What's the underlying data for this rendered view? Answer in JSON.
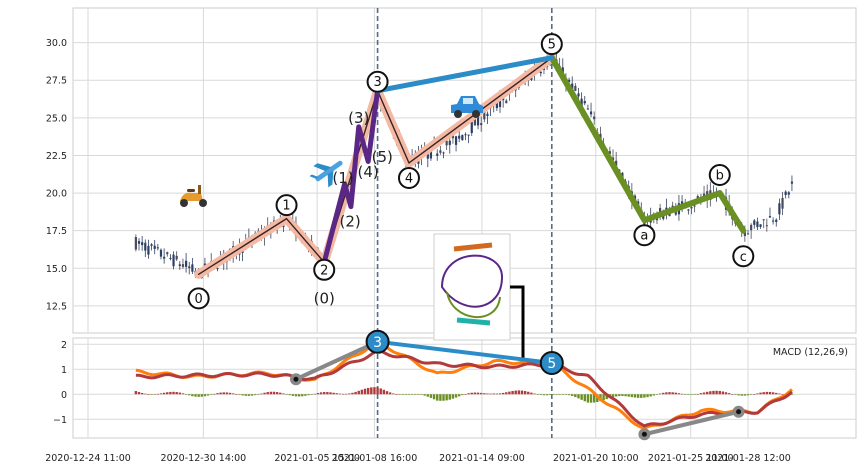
{
  "chart_data": [
    {
      "type": "candlestick",
      "panel": "price",
      "title": "",
      "xlabel": "",
      "ylabel": "",
      "ylim": [
        10.7,
        32.3
      ],
      "y_ticks": [
        "12.5",
        "15.0",
        "17.5",
        "20.0",
        "22.5",
        "25.0",
        "27.5",
        "30.0"
      ],
      "y_tick_values": [
        12.5,
        15.0,
        17.5,
        20.0,
        22.5,
        25.0,
        27.5,
        30.0
      ],
      "grid": true,
      "price_anchors": [
        {
          "t": "2020-12-27 00:00",
          "v": 16.7
        },
        {
          "t": "2020-12-29 14:00",
          "v": 15.2
        },
        {
          "t": "2020-12-30 08:00",
          "v": 14.6
        },
        {
          "t": "2021-01-04 00:00",
          "v": 18.3
        },
        {
          "t": "2021-01-06 00:00",
          "v": 15.4
        },
        {
          "t": "2021-01-08 20:00",
          "v": 26.8
        },
        {
          "t": "2021-01-10 12:00",
          "v": 22.0
        },
        {
          "t": "2021-01-13 00:00",
          "v": 23.5
        },
        {
          "t": "2021-01-18 02:00",
          "v": 29.0
        },
        {
          "t": "2021-01-20 00:00",
          "v": 25.5
        },
        {
          "t": "2021-01-23 00:00",
          "v": 18.2
        },
        {
          "t": "2021-01-27 00:00",
          "v": 20.0
        },
        {
          "t": "2021-01-28 06:00",
          "v": 17.5
        },
        {
          "t": "2021-01-30 00:00",
          "v": 18.5
        },
        {
          "t": "2021-01-30 20:00",
          "v": 20.5
        }
      ],
      "wave_labels": [
        {
          "text": "0",
          "t": "2020-12-30 08:00",
          "v": 13.0,
          "circled": true
        },
        {
          "text": "1",
          "t": "2021-01-04 00:00",
          "v": 19.2,
          "circled": true
        },
        {
          "text": "2",
          "t": "2021-01-06 00:00",
          "v": 14.9,
          "circled": true
        },
        {
          "text": "3",
          "t": "2021-01-08 20:00",
          "v": 27.4,
          "circled": true
        },
        {
          "text": "4",
          "t": "2021-01-10 12:00",
          "v": 21.0,
          "circled": true
        },
        {
          "text": "5",
          "t": "2021-01-18 02:00",
          "v": 29.9,
          "circled": true
        },
        {
          "text": "a",
          "t": "2021-01-23 00:00",
          "v": 17.2,
          "circled": true
        },
        {
          "text": "b",
          "t": "2021-01-27 00:00",
          "v": 21.2,
          "circled": true
        },
        {
          "text": "c",
          "t": "2021-01-28 06:00",
          "v": 15.8,
          "circled": true
        },
        {
          "text": "(0)",
          "t": "2021-01-06 00:00",
          "v": 13.0,
          "circled": false
        },
        {
          "text": "(1)",
          "t": "2021-01-07 00:00",
          "v": 21.0,
          "circled": false
        },
        {
          "text": "(2)",
          "t": "2021-01-07 09:00",
          "v": 18.1,
          "circled": false
        },
        {
          "text": "(3)",
          "t": "2021-01-07 20:00",
          "v": 25.0,
          "circled": false
        },
        {
          "text": "(4)",
          "t": "2021-01-08 08:00",
          "v": 21.4,
          "circled": false
        },
        {
          "text": "(5)",
          "t": "2021-01-09 02:00",
          "v": 22.4,
          "circled": false
        }
      ],
      "lines": [
        {
          "name": "impulse-wave",
          "color": "#f4b9a2",
          "width": 9,
          "points": [
            [
              "2020-12-30 08:00",
              14.6
            ],
            [
              "2021-01-04 00:00",
              18.3
            ],
            [
              "2021-01-06 00:00",
              15.4
            ],
            [
              "2021-01-08 20:00",
              26.8
            ],
            [
              "2021-01-10 12:00",
              22.0
            ],
            [
              "2021-01-18 02:00",
              29.0
            ]
          ]
        },
        {
          "name": "impulse-wave-core",
          "color": "#3a2226",
          "width": 1.4,
          "points": [
            [
              "2020-12-30 08:00",
              14.6
            ],
            [
              "2021-01-04 00:00",
              18.3
            ],
            [
              "2021-01-06 00:00",
              15.4
            ],
            [
              "2021-01-08 20:00",
              26.8
            ],
            [
              "2021-01-10 12:00",
              22.0
            ],
            [
              "2021-01-18 02:00",
              29.0
            ]
          ]
        },
        {
          "name": "subwave",
          "color": "#5b2787",
          "width": 5,
          "points": [
            [
              "2021-01-06 00:00",
              15.4
            ],
            [
              "2021-01-07 02:00",
              20.6
            ],
            [
              "2021-01-07 10:00",
              19.1
            ],
            [
              "2021-01-07 20:00",
              24.4
            ],
            [
              "2021-01-08 08:00",
              22.1
            ],
            [
              "2021-01-08 20:00",
              26.8
            ]
          ]
        },
        {
          "name": "correction-wave",
          "color": "#6a8f23",
          "width": 6,
          "points": [
            [
              "2021-01-18 02:00",
              29.0
            ],
            [
              "2021-01-23 00:00",
              18.2
            ],
            [
              "2021-01-27 00:00",
              20.0
            ],
            [
              "2021-01-28 06:00",
              17.5
            ]
          ]
        },
        {
          "name": "divergence-link",
          "color": "#2b8cc7",
          "width": 5,
          "points": [
            [
              "2021-01-08 20:00",
              26.8
            ],
            [
              "2021-01-18 02:00",
              29.0
            ]
          ]
        }
      ],
      "vertical_markers": [
        "2021-01-08 20:00",
        "2021-01-18 02:00"
      ],
      "icons": [
        "scooter-icon",
        "airplane-icon",
        "car-icon",
        "roller-coaster-icon"
      ]
    },
    {
      "type": "line",
      "panel": "macd",
      "title": "",
      "legend": "MACD (12,26,9)",
      "ylim": [
        -1.75,
        2.25
      ],
      "y_ticks": [
        "−1",
        "0",
        "1",
        "2"
      ],
      "y_tick_values": [
        -1,
        0,
        1,
        2
      ],
      "grid": true,
      "series": [
        {
          "name": "",
          "color": "#ff7f0e",
          "anchors": [
            [
              "2020-12-27 00:00",
              0.9
            ],
            [
              "2020-12-30 00:00",
              0.7
            ],
            [
              "2021-01-03 00:00",
              0.85
            ],
            [
              "2021-01-05 12:00",
              0.55
            ],
            [
              "2021-01-08 20:00",
              2.1
            ],
            [
              "2021-01-12 00:00",
              0.8
            ],
            [
              "2021-01-15 00:00",
              1.3
            ],
            [
              "2021-01-18 02:00",
              1.25
            ],
            [
              "2021-01-20 00:00",
              0.2
            ],
            [
              "2021-01-23 00:00",
              -1.4
            ],
            [
              "2021-01-26 00:00",
              -0.65
            ],
            [
              "2021-01-29 00:00",
              -0.7
            ],
            [
              "2021-01-30 20:00",
              0.2
            ]
          ]
        },
        {
          "name": "",
          "color": "#b23a3a",
          "anchors": [
            [
              "2020-12-27 00:00",
              0.7
            ],
            [
              "2020-12-30 00:00",
              0.75
            ],
            [
              "2021-01-03 00:00",
              0.8
            ],
            [
              "2021-01-05 12:00",
              0.6
            ],
            [
              "2021-01-08 20:00",
              1.7
            ],
            [
              "2021-01-12 00:00",
              1.2
            ],
            [
              "2021-01-15 00:00",
              1.1
            ],
            [
              "2021-01-18 02:00",
              1.2
            ],
            [
              "2021-01-20 00:00",
              0.7
            ],
            [
              "2021-01-23 00:00",
              -1.3
            ],
            [
              "2021-01-26 00:00",
              -0.8
            ],
            [
              "2021-01-29 00:00",
              -0.7
            ],
            [
              "2021-01-30 20:00",
              0.1
            ]
          ]
        }
      ],
      "divergence_links": [
        {
          "color": "#888888",
          "points": [
            [
              "2021-01-04 12:00",
              0.6
            ],
            [
              "2021-01-08 20:00",
              2.1
            ]
          ]
        },
        {
          "color": "#2b8cc7",
          "points": [
            [
              "2021-01-08 20:00",
              2.1
            ],
            [
              "2021-01-18 02:00",
              1.25
            ]
          ]
        },
        {
          "color": "#888888",
          "points": [
            [
              "2021-01-23 00:00",
              -1.6
            ],
            [
              "2021-01-28 00:00",
              -0.7
            ]
          ]
        }
      ],
      "macd_markers": [
        {
          "text": "3",
          "t": "2021-01-08 20:00",
          "v": 2.1
        },
        {
          "text": "5",
          "t": "2021-01-18 02:00",
          "v": 1.25
        }
      ],
      "histogram_colors": {
        "positive": "#b23a3a",
        "negative": "#6a8f23"
      }
    }
  ],
  "x_ticks": [
    {
      "label": "2020-12-24 11:00",
      "t": "2020-12-24 11:00"
    },
    {
      "label": "2020-12-30 14:00",
      "t": "2020-12-30 14:00"
    },
    {
      "label": "2021-01-05 15:00",
      "t": "2021-01-05 15:00"
    },
    {
      "label": "2021-01-08 16:00",
      "t": "2021-01-08 16:00"
    },
    {
      "label": "2021-01-14 09:00",
      "t": "2021-01-14 09:00"
    },
    {
      "label": "2021-01-20 10:00",
      "t": "2021-01-20 10:00"
    },
    {
      "label": "2021-01-25 11:00",
      "t": "2021-01-25 11:00"
    },
    {
      "label": "2021-01-28 12:00",
      "t": "2021-01-28 12:00"
    }
  ],
  "x_domain": [
    "2020-12-24 11:00",
    "2021-02-01 00:00"
  ],
  "colors": {
    "grid": "#d9d9d9",
    "axes_edge": "#cccccc",
    "candle_up": "#4a4a5a",
    "candle_down": "#2c3e63",
    "marker_dash": "#556b8a",
    "circle_fill": "#ffffff",
    "circle_stroke": "#111111",
    "macd_marker_fill": "#2b8cc7"
  }
}
